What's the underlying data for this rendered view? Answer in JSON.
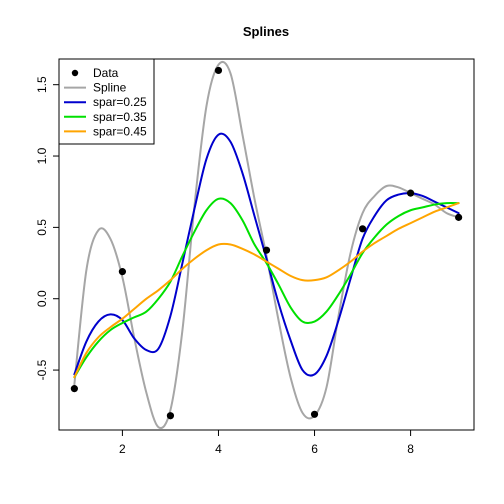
{
  "chart_data": {
    "type": "line",
    "title": "Splines",
    "xlabel": "",
    "ylabel": "",
    "xlim": [
      0.68,
      9.32
    ],
    "ylim": [
      -0.92,
      1.68
    ],
    "x_ticks": [
      2,
      4,
      6,
      8
    ],
    "y_ticks": [
      -0.5,
      0.0,
      0.5,
      1.0,
      1.5
    ],
    "x_tick_labels": [
      "2",
      "4",
      "6",
      "8"
    ],
    "y_tick_labels": [
      "-0.5",
      "0.0",
      "0.5",
      "1.0",
      "1.5"
    ],
    "grid": false,
    "legend_position": "top-left",
    "points": {
      "name": "Data",
      "color": "#000000",
      "x": [
        1,
        2,
        3,
        4,
        5,
        6,
        7,
        8,
        9
      ],
      "y": [
        -0.63,
        0.19,
        -0.82,
        1.6,
        0.34,
        -0.81,
        0.49,
        0.74,
        0.57
      ]
    },
    "series": [
      {
        "name": "Spline",
        "color": "#a6a6a6",
        "x": [
          1.0,
          1.25,
          1.5,
          1.75,
          2.0,
          2.25,
          2.5,
          2.75,
          3.0,
          3.25,
          3.5,
          3.75,
          4.0,
          4.25,
          4.5,
          4.75,
          5.0,
          5.25,
          5.5,
          5.75,
          6.0,
          6.25,
          6.5,
          6.75,
          7.0,
          7.25,
          7.5,
          7.75,
          8.0,
          8.25,
          8.5,
          8.75,
          9.0
        ],
        "y": [
          -0.6,
          0.2,
          0.48,
          0.42,
          0.15,
          -0.28,
          -0.66,
          -0.9,
          -0.78,
          -0.22,
          0.65,
          1.35,
          1.64,
          1.58,
          1.15,
          0.7,
          0.3,
          -0.15,
          -0.55,
          -0.8,
          -0.82,
          -0.62,
          -0.12,
          0.32,
          0.6,
          0.72,
          0.79,
          0.78,
          0.74,
          0.7,
          0.66,
          0.6,
          0.57
        ]
      },
      {
        "name": "spar=0.25",
        "color": "#0000cd",
        "x": [
          1.0,
          1.25,
          1.5,
          1.75,
          2.0,
          2.25,
          2.5,
          2.75,
          3.0,
          3.25,
          3.5,
          3.75,
          4.0,
          4.25,
          4.5,
          4.75,
          5.0,
          5.25,
          5.5,
          5.75,
          6.0,
          6.25,
          6.5,
          6.75,
          7.0,
          7.25,
          7.5,
          7.75,
          8.0,
          8.25,
          8.5,
          8.75,
          9.0
        ],
        "y": [
          -0.53,
          -0.3,
          -0.16,
          -0.11,
          -0.15,
          -0.28,
          -0.36,
          -0.35,
          -0.12,
          0.25,
          0.63,
          0.98,
          1.15,
          1.1,
          0.88,
          0.58,
          0.28,
          -0.03,
          -0.29,
          -0.5,
          -0.53,
          -0.4,
          -0.15,
          0.14,
          0.42,
          0.58,
          0.69,
          0.73,
          0.74,
          0.72,
          0.68,
          0.64,
          0.6
        ]
      },
      {
        "name": "spar=0.35",
        "color": "#00e000",
        "x": [
          1.0,
          1.25,
          1.5,
          1.75,
          2.0,
          2.25,
          2.5,
          2.75,
          3.0,
          3.25,
          3.5,
          3.75,
          4.0,
          4.25,
          4.5,
          4.75,
          5.0,
          5.25,
          5.5,
          5.75,
          6.0,
          6.25,
          6.5,
          6.75,
          7.0,
          7.25,
          7.5,
          7.75,
          8.0,
          8.25,
          8.5,
          8.75,
          9.0
        ],
        "y": [
          -0.55,
          -0.41,
          -0.3,
          -0.22,
          -0.17,
          -0.13,
          -0.09,
          0.0,
          0.12,
          0.3,
          0.47,
          0.62,
          0.7,
          0.67,
          0.55,
          0.38,
          0.25,
          0.1,
          -0.06,
          -0.16,
          -0.16,
          -0.09,
          0.03,
          0.17,
          0.32,
          0.43,
          0.52,
          0.58,
          0.62,
          0.64,
          0.66,
          0.67,
          0.67
        ]
      },
      {
        "name": "spar=0.45",
        "color": "#ffa500",
        "x": [
          1.0,
          1.25,
          1.5,
          1.75,
          2.0,
          2.25,
          2.5,
          2.75,
          3.0,
          3.25,
          3.5,
          3.75,
          4.0,
          4.25,
          4.5,
          4.75,
          5.0,
          5.25,
          5.5,
          5.75,
          6.0,
          6.25,
          6.5,
          6.75,
          7.0,
          7.25,
          7.5,
          7.75,
          8.0,
          8.25,
          8.5,
          8.75,
          9.0
        ],
        "y": [
          -0.55,
          -0.38,
          -0.27,
          -0.2,
          -0.14,
          -0.07,
          0.0,
          0.06,
          0.13,
          0.21,
          0.28,
          0.34,
          0.38,
          0.38,
          0.35,
          0.31,
          0.26,
          0.21,
          0.16,
          0.13,
          0.13,
          0.15,
          0.2,
          0.26,
          0.33,
          0.39,
          0.44,
          0.49,
          0.53,
          0.57,
          0.61,
          0.64,
          0.67
        ]
      }
    ]
  }
}
